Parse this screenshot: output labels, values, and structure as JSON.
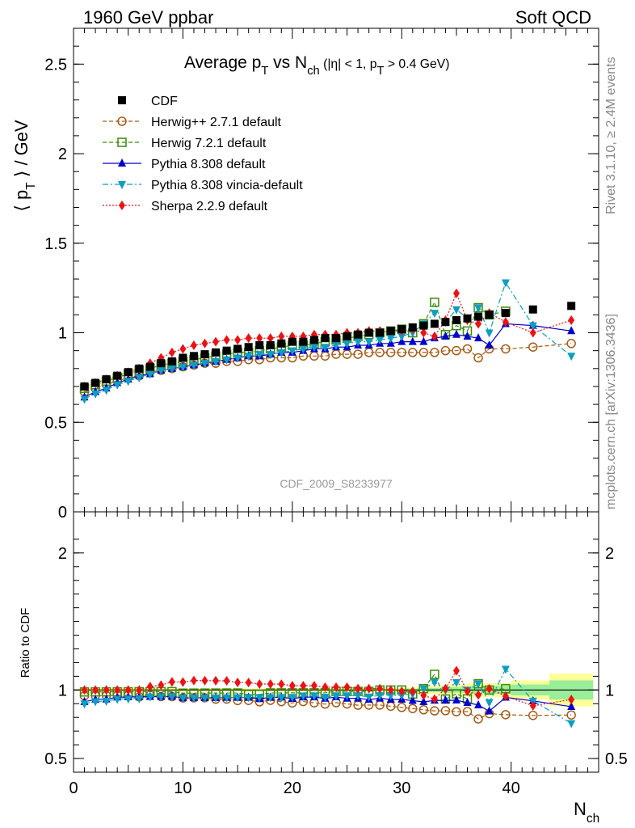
{
  "header": {
    "left": "1960 GeV ppbar",
    "right": "Soft QCD"
  },
  "side": {
    "rivet": "Rivet 3.1.10, ≥ 2.4M events",
    "mcplots": "mcplots.cern.ch [arXiv:1306.3436]"
  },
  "chart_data": [
    {
      "type": "scatter",
      "title": "Average p_T vs N_ch (|η| < 1, p_T > 0.4 GeV)",
      "ylabel": "⟨ p_T ⟩ / GeV",
      "xlabel": "N_ch",
      "watermark": "CDF_2009_S8233977",
      "xlim": [
        0,
        48
      ],
      "ylim": [
        0,
        2.7
      ],
      "x_ticks": [
        "0",
        "10",
        "20",
        "30",
        "40"
      ],
      "y_ticks": [
        "0",
        "0.5",
        "1",
        "1.5",
        "2",
        "2.5"
      ],
      "legend_position": "top-left",
      "series": [
        {
          "name": "CDF",
          "color": "#000000",
          "marker": "square-filled",
          "line": "none",
          "x": [
            1,
            2,
            3,
            4,
            5,
            6,
            7,
            8,
            9,
            10,
            11,
            12,
            13,
            14,
            15,
            16,
            17,
            18,
            19,
            20,
            21,
            22,
            23,
            24,
            25,
            26,
            27,
            28,
            29,
            30,
            31,
            32,
            33,
            34,
            35,
            36,
            37,
            38,
            39.5,
            42,
            45.5
          ],
          "values": [
            0.7,
            0.72,
            0.74,
            0.76,
            0.78,
            0.8,
            0.81,
            0.83,
            0.84,
            0.86,
            0.87,
            0.88,
            0.89,
            0.9,
            0.91,
            0.92,
            0.93,
            0.93,
            0.94,
            0.95,
            0.95,
            0.96,
            0.97,
            0.97,
            0.98,
            0.99,
            1.0,
            1.0,
            1.01,
            1.02,
            1.03,
            1.04,
            1.05,
            1.06,
            1.07,
            1.08,
            1.09,
            1.1,
            1.11,
            1.13,
            1.15
          ]
        },
        {
          "name": "Herwig++ 2.7.1 default",
          "color": "#a65a12",
          "marker": "circle-open",
          "line": "dashed",
          "x": [
            1,
            2,
            3,
            4,
            5,
            6,
            7,
            8,
            9,
            10,
            11,
            12,
            13,
            14,
            15,
            16,
            17,
            18,
            19,
            20,
            21,
            22,
            23,
            24,
            25,
            26,
            27,
            28,
            29,
            30,
            31,
            32,
            33,
            34,
            35,
            36,
            37,
            38,
            39.5,
            42,
            45.5
          ],
          "values": [
            0.67,
            0.69,
            0.71,
            0.73,
            0.75,
            0.76,
            0.78,
            0.79,
            0.8,
            0.81,
            0.82,
            0.83,
            0.83,
            0.84,
            0.84,
            0.85,
            0.85,
            0.86,
            0.86,
            0.86,
            0.87,
            0.87,
            0.87,
            0.88,
            0.88,
            0.88,
            0.89,
            0.89,
            0.89,
            0.89,
            0.89,
            0.89,
            0.89,
            0.9,
            0.9,
            0.91,
            0.86,
            0.91,
            0.91,
            0.92,
            0.94
          ]
        },
        {
          "name": "Herwig 7.2.1 default",
          "color": "#3c8c0a",
          "marker": "square-open",
          "line": "dashed",
          "x": [
            1,
            2,
            3,
            4,
            5,
            6,
            7,
            8,
            9,
            10,
            11,
            12,
            13,
            14,
            15,
            16,
            17,
            18,
            19,
            20,
            21,
            22,
            23,
            24,
            25,
            26,
            27,
            28,
            29,
            30,
            31,
            32,
            33,
            34,
            35,
            36,
            37,
            38,
            39.5
          ],
          "values": [
            0.69,
            0.71,
            0.73,
            0.75,
            0.77,
            0.79,
            0.8,
            0.82,
            0.83,
            0.84,
            0.85,
            0.86,
            0.87,
            0.88,
            0.89,
            0.89,
            0.9,
            0.91,
            0.92,
            0.93,
            0.93,
            0.94,
            0.95,
            0.96,
            0.97,
            0.98,
            0.99,
            1.0,
            1.01,
            1.02,
            1.0,
            1.05,
            1.17,
            0.99,
            1.04,
            1.01,
            1.14,
            1.1,
            1.12
          ]
        },
        {
          "name": "Pythia 8.308 default",
          "color": "#0000cc",
          "marker": "triangle-up-filled",
          "line": "solid",
          "x": [
            1,
            2,
            3,
            4,
            5,
            6,
            7,
            8,
            9,
            10,
            11,
            12,
            13,
            14,
            15,
            16,
            17,
            18,
            19,
            20,
            21,
            22,
            23,
            24,
            25,
            26,
            27,
            28,
            29,
            30,
            31,
            32,
            33,
            34,
            35,
            36,
            37,
            38,
            39.5,
            42,
            45.5
          ],
          "values": [
            0.64,
            0.67,
            0.69,
            0.72,
            0.74,
            0.76,
            0.77,
            0.79,
            0.8,
            0.81,
            0.82,
            0.83,
            0.84,
            0.85,
            0.86,
            0.87,
            0.87,
            0.88,
            0.89,
            0.89,
            0.9,
            0.91,
            0.91,
            0.92,
            0.92,
            0.93,
            0.93,
            0.94,
            0.94,
            0.95,
            0.95,
            0.95,
            0.97,
            0.98,
            0.99,
            0.98,
            0.97,
            0.93,
            1.05,
            1.04,
            1.01
          ]
        },
        {
          "name": "Pythia 8.308 vincia-default",
          "color": "#0d9ec0",
          "marker": "triangle-down-filled",
          "line": "dashdot",
          "x": [
            1,
            2,
            3,
            4,
            5,
            6,
            7,
            8,
            9,
            10,
            11,
            12,
            13,
            14,
            15,
            16,
            17,
            18,
            19,
            20,
            21,
            22,
            23,
            24,
            25,
            26,
            27,
            28,
            29,
            30,
            31,
            32,
            33,
            34,
            35,
            36,
            37,
            38,
            39.5,
            42,
            45.5
          ],
          "values": [
            0.63,
            0.66,
            0.68,
            0.71,
            0.73,
            0.75,
            0.77,
            0.79,
            0.8,
            0.81,
            0.82,
            0.83,
            0.84,
            0.85,
            0.86,
            0.87,
            0.88,
            0.88,
            0.89,
            0.9,
            0.91,
            0.92,
            0.92,
            0.93,
            0.94,
            0.95,
            0.95,
            0.96,
            0.97,
            0.98,
            1.0,
            1.05,
            1.11,
            1.06,
            1.13,
            1.08,
            1.14,
            1.0,
            1.28,
            1.04,
            0.87
          ]
        },
        {
          "name": "Sherpa 2.2.9 default",
          "color": "#ee1111",
          "marker": "diamond-filled",
          "line": "dotted",
          "x": [
            1,
            2,
            3,
            4,
            5,
            6,
            7,
            8,
            9,
            10,
            11,
            12,
            13,
            14,
            15,
            16,
            17,
            18,
            19,
            20,
            21,
            22,
            23,
            24,
            25,
            26,
            27,
            28,
            29,
            30,
            31,
            32,
            33,
            34,
            35,
            36,
            37,
            38,
            39.5,
            42,
            45.5
          ],
          "values": [
            0.7,
            0.72,
            0.74,
            0.76,
            0.78,
            0.8,
            0.83,
            0.86,
            0.89,
            0.91,
            0.93,
            0.94,
            0.95,
            0.96,
            0.96,
            0.97,
            0.97,
            0.97,
            0.98,
            0.98,
            0.98,
            0.99,
            0.99,
            0.99,
            1.0,
            1.0,
            1.01,
            1.01,
            1.01,
            1.01,
            1.02,
            1.0,
            0.98,
            1.07,
            1.22,
            1.07,
            1.05,
            1.11,
            1.06,
            1.0,
            1.07
          ]
        }
      ]
    },
    {
      "type": "scatter",
      "ylabel": "Ratio to CDF",
      "xlim": [
        0,
        48
      ],
      "ylim": [
        0.4,
        2.3
      ],
      "y_ticks": [
        "0.5",
        "1",
        "2"
      ],
      "reference_line": 1,
      "band_note": "CDF uncertainty band (yellow = total, green = stat.)",
      "band": {
        "x_edges": [
          30,
          32,
          34,
          36,
          38,
          40,
          43.5,
          47.5
        ],
        "yellow_halfwidth": [
          0.02,
          0.03,
          0.04,
          0.05,
          0.05,
          0.07,
          0.12
        ],
        "green_halfwidth": [
          0.01,
          0.015,
          0.02,
          0.025,
          0.03,
          0.04,
          0.07
        ]
      }
    }
  ]
}
